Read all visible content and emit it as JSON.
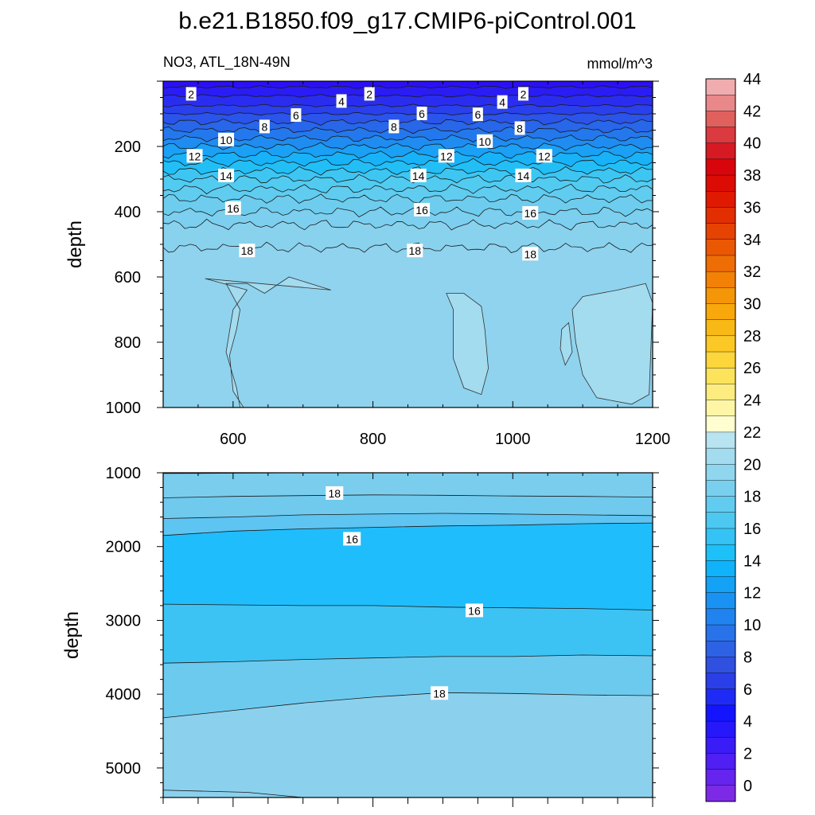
{
  "title": "b.e21.B1850.f09_g17.CMIP6-piControl.001",
  "subtitle_left": "NO3, ATL_18N-49N",
  "subtitle_right": "mmol/m^3",
  "colorbar": {
    "levels": [
      0,
      2,
      4,
      6,
      8,
      10,
      12,
      14,
      16,
      18,
      20,
      22,
      24,
      26,
      28,
      30,
      32,
      34,
      36,
      38,
      40,
      42,
      44
    ],
    "tick_labels": [
      "0",
      "2",
      "4",
      "6",
      "8",
      "10",
      "12",
      "14",
      "16",
      "18",
      "20",
      "22",
      "24",
      "26",
      "28",
      "30",
      "32",
      "34",
      "36",
      "38",
      "40",
      "42",
      "44"
    ],
    "colors": [
      "#7d2ae6",
      "#6624ef",
      "#4f1ff3",
      "#3a1cf7",
      "#2618fb",
      "#1414ff",
      "#1f2bf5",
      "#2a3fe8",
      "#3050e0",
      "#2e62e4",
      "#2873ea",
      "#2183ef",
      "#1a92f3",
      "#14a2f6",
      "#10b3f9",
      "#1ec0f8",
      "#34c3f4",
      "#4cc8f1",
      "#62ccf0",
      "#79d0ee",
      "#90d6ee",
      "#a4dcef",
      "#b8e3f0",
      "#fefed0",
      "#fef6a6",
      "#fdec80",
      "#fde35c",
      "#fcd63a",
      "#fbc826",
      "#f9b915",
      "#f8a80a",
      "#f59508",
      "#f28106",
      "#ee6d05",
      "#ea5804",
      "#e64303",
      "#e32e02",
      "#e01a01",
      "#dc0c04",
      "#d8060c",
      "#d61a24",
      "#da3a40",
      "#e0605e",
      "#e8888a",
      "#f0acae"
    ]
  },
  "chart_data": [
    {
      "type": "contour",
      "panel": "upper",
      "variable": "NO3",
      "region": "ATL_18N-49N",
      "units": "mmol/m^3",
      "xlabel": "",
      "ylabel": "depth",
      "xlim": [
        500,
        1200
      ],
      "ylim": [
        1000,
        0
      ],
      "x_ticks": [
        600,
        800,
        1000,
        1200
      ],
      "y_ticks": [
        200,
        400,
        600,
        800,
        1000
      ],
      "contour_levels": [
        2,
        4,
        6,
        8,
        10,
        12,
        14,
        16,
        18,
        20
      ],
      "level_depths_m": [
        18,
        45,
        75,
        100,
        125,
        150,
        175,
        200,
        225,
        250,
        275,
        300,
        330,
        360,
        400,
        440,
        510
      ],
      "contour_labels": [
        {
          "value": 2,
          "x": 540,
          "depth": 40
        },
        {
          "value": 2,
          "x": 795,
          "depth": 40
        },
        {
          "value": 2,
          "x": 1015,
          "depth": 40
        },
        {
          "value": 4,
          "x": 755,
          "depth": 62
        },
        {
          "value": 4,
          "x": 985,
          "depth": 65
        },
        {
          "value": 6,
          "x": 690,
          "depth": 105
        },
        {
          "value": 6,
          "x": 870,
          "depth": 100
        },
        {
          "value": 6,
          "x": 950,
          "depth": 103
        },
        {
          "value": 8,
          "x": 645,
          "depth": 140
        },
        {
          "value": 8,
          "x": 830,
          "depth": 140
        },
        {
          "value": 8,
          "x": 1010,
          "depth": 145
        },
        {
          "value": 10,
          "x": 590,
          "depth": 180
        },
        {
          "value": 10,
          "x": 960,
          "depth": 185
        },
        {
          "value": 12,
          "x": 545,
          "depth": 230
        },
        {
          "value": 12,
          "x": 905,
          "depth": 230
        },
        {
          "value": 12,
          "x": 1045,
          "depth": 230
        },
        {
          "value": 14,
          "x": 590,
          "depth": 290
        },
        {
          "value": 14,
          "x": 865,
          "depth": 290
        },
        {
          "value": 14,
          "x": 1015,
          "depth": 290
        },
        {
          "value": 16,
          "x": 600,
          "depth": 390
        },
        {
          "value": 16,
          "x": 870,
          "depth": 395
        },
        {
          "value": 16,
          "x": 1025,
          "depth": 405
        },
        {
          "value": 18,
          "x": 620,
          "depth": 520
        },
        {
          "value": 18,
          "x": 860,
          "depth": 520
        },
        {
          "value": 18,
          "x": 1025,
          "depth": 530
        }
      ]
    },
    {
      "type": "contour",
      "panel": "lower",
      "variable": "NO3",
      "units": "mmol/m^3",
      "xlabel": "",
      "ylabel": "depth",
      "xlim": [
        500,
        1200
      ],
      "ylim": [
        5400,
        1000
      ],
      "y_ticks": [
        1000,
        2000,
        3000,
        4000,
        5000
      ],
      "contour_levels": [
        16,
        18,
        20
      ],
      "contour_labels": [
        {
          "value": 18,
          "x": 745,
          "depth": 1280
        },
        {
          "value": 16,
          "x": 770,
          "depth": 1900
        },
        {
          "value": 16,
          "x": 945,
          "depth": 2870
        },
        {
          "value": 18,
          "x": 895,
          "depth": 3990
        }
      ]
    }
  ]
}
